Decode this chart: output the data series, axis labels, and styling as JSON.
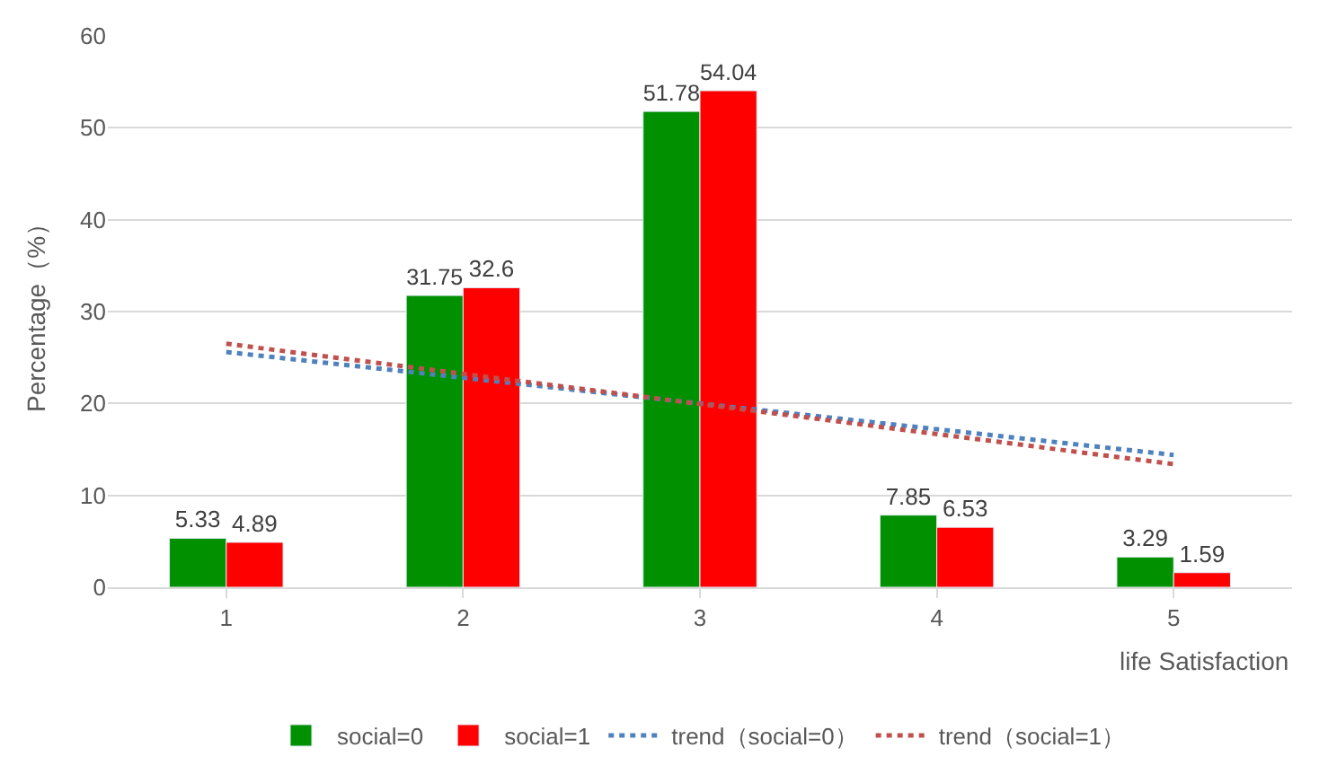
{
  "chart_data": {
    "type": "bar",
    "ylabel": "Percentage（%）",
    "xlabel": "life Satisfaction",
    "categories": [
      "1",
      "2",
      "3",
      "4",
      "5"
    ],
    "series": [
      {
        "name": "social=0",
        "color": "#009000",
        "values": [
          5.33,
          31.75,
          51.78,
          7.85,
          3.29
        ],
        "value_labels": [
          "5.33",
          "31.75",
          "51.78",
          "7.85",
          "3.29"
        ]
      },
      {
        "name": "social=1",
        "color": "#ff0000",
        "values": [
          4.89,
          32.6,
          54.04,
          6.53,
          1.59
        ],
        "value_labels": [
          "4.89",
          "32.6",
          "54.04",
          "6.53",
          "1.59"
        ]
      },
      {
        "name": "trend（social=0）",
        "type": "line",
        "line_style": "dotted",
        "color": "#4f81bd",
        "x": [
          "1",
          "5"
        ],
        "values": [
          25.6,
          14.4
        ]
      },
      {
        "name": "trend（social=1）",
        "type": "line",
        "line_style": "dotted",
        "color": "#c0504d",
        "x": [
          "1",
          "5"
        ],
        "values": [
          26.5,
          13.4
        ]
      }
    ],
    "ylim": [
      0,
      60
    ],
    "yticks": [
      0,
      10,
      20,
      30,
      40,
      50,
      60
    ],
    "grid": "y",
    "legend": "bottom"
  }
}
